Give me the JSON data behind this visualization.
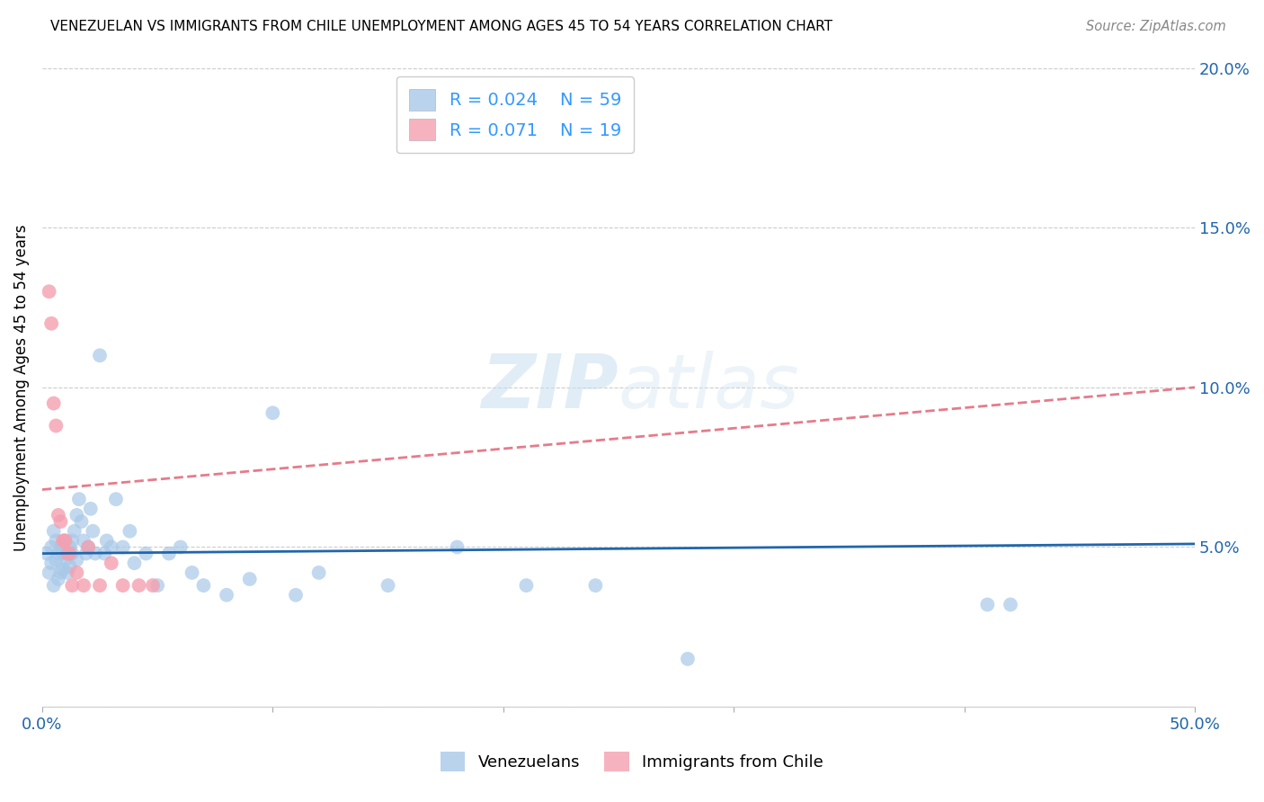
{
  "title": "VENEZUELAN VS IMMIGRANTS FROM CHILE UNEMPLOYMENT AMONG AGES 45 TO 54 YEARS CORRELATION CHART",
  "source": "Source: ZipAtlas.com",
  "ylabel_label": "Unemployment Among Ages 45 to 54 years",
  "xlim": [
    0.0,
    0.5
  ],
  "ylim": [
    0.0,
    0.2
  ],
  "yticks": [
    0.0,
    0.05,
    0.1,
    0.15,
    0.2
  ],
  "ytick_labels": [
    "",
    "5.0%",
    "10.0%",
    "15.0%",
    "20.0%"
  ],
  "xticks": [
    0.0,
    0.1,
    0.2,
    0.3,
    0.4,
    0.5
  ],
  "xtick_labels": [
    "0.0%",
    "",
    "",
    "",
    "",
    "50.0%"
  ],
  "blue_color": "#a8c8e8",
  "pink_color": "#f4a0b0",
  "line_blue": "#2166ac",
  "line_pink": "#e05a6e",
  "legend_r_blue": "0.024",
  "legend_n_blue": "59",
  "legend_r_pink": "0.071",
  "legend_n_pink": "19",
  "venezuelan_x": [
    0.002,
    0.003,
    0.004,
    0.004,
    0.005,
    0.005,
    0.006,
    0.006,
    0.007,
    0.007,
    0.008,
    0.008,
    0.009,
    0.009,
    0.01,
    0.01,
    0.011,
    0.011,
    0.012,
    0.012,
    0.013,
    0.013,
    0.014,
    0.015,
    0.015,
    0.016,
    0.017,
    0.018,
    0.019,
    0.02,
    0.021,
    0.022,
    0.023,
    0.025,
    0.027,
    0.028,
    0.03,
    0.032,
    0.035,
    0.038,
    0.04,
    0.045,
    0.05,
    0.055,
    0.06,
    0.065,
    0.07,
    0.08,
    0.09,
    0.1,
    0.11,
    0.12,
    0.15,
    0.18,
    0.21,
    0.24,
    0.28,
    0.41,
    0.42
  ],
  "venezuelan_y": [
    0.048,
    0.042,
    0.05,
    0.045,
    0.055,
    0.038,
    0.052,
    0.046,
    0.048,
    0.04,
    0.05,
    0.042,
    0.048,
    0.043,
    0.052,
    0.046,
    0.048,
    0.042,
    0.05,
    0.044,
    0.052,
    0.048,
    0.055,
    0.06,
    0.046,
    0.065,
    0.058,
    0.052,
    0.048,
    0.05,
    0.062,
    0.055,
    0.048,
    0.11,
    0.048,
    0.052,
    0.05,
    0.065,
    0.05,
    0.055,
    0.045,
    0.048,
    0.038,
    0.048,
    0.05,
    0.042,
    0.038,
    0.035,
    0.04,
    0.092,
    0.035,
    0.042,
    0.038,
    0.05,
    0.038,
    0.038,
    0.015,
    0.032,
    0.032
  ],
  "chile_x": [
    0.003,
    0.004,
    0.005,
    0.006,
    0.007,
    0.008,
    0.009,
    0.01,
    0.011,
    0.012,
    0.013,
    0.015,
    0.018,
    0.02,
    0.025,
    0.03,
    0.035,
    0.042,
    0.048
  ],
  "chile_y": [
    0.13,
    0.12,
    0.095,
    0.088,
    0.06,
    0.058,
    0.052,
    0.052,
    0.048,
    0.048,
    0.038,
    0.042,
    0.038,
    0.05,
    0.038,
    0.045,
    0.038,
    0.038,
    0.038
  ],
  "watermark_zip": "ZIP",
  "watermark_atlas": "atlas",
  "background_color": "#ffffff",
  "grid_color": "#cccccc",
  "tick_color": "#aaaaaa"
}
